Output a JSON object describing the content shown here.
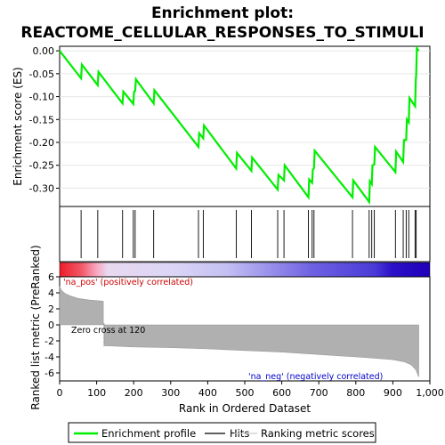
{
  "title_line1": "Enrichment plot:",
  "title_line2": "REACTOME_CELLULAR_RESPONSES_TO_STIMULI",
  "colors": {
    "profile": "#00ee00",
    "hits": "#000000",
    "metric": "#aaaaaa",
    "pos_label": "#cc0000",
    "neg_label": "#0000cc"
  },
  "chart_data": {
    "type": "line",
    "xlim": [
      0,
      1000
    ],
    "x_ticks": [
      "0",
      "100",
      "200",
      "300",
      "400",
      "500",
      "600",
      "700",
      "800",
      "900",
      "1,000"
    ],
    "xlabel": "Rank in Ordered Dataset",
    "es_panel": {
      "ylabel": "Enrichment score (ES)",
      "ylim": [
        -0.34,
        0.01
      ],
      "y_ticks": [
        "0.00",
        "-0.05",
        "-0.10",
        "-0.15",
        "-0.20",
        "-0.25",
        "-0.30"
      ],
      "series": [
        {
          "name": "Enrichment profile",
          "points": [
            [
              0,
              0.0
            ],
            [
              58,
              -0.06
            ],
            [
              60,
              -0.03
            ],
            [
              103,
              -0.075
            ],
            [
              105,
              -0.046
            ],
            [
              170,
              -0.115
            ],
            [
              172,
              -0.089
            ],
            [
              199,
              -0.116
            ],
            [
              201,
              -0.09
            ],
            [
              204,
              -0.087
            ],
            [
              206,
              -0.062
            ],
            [
              254,
              -0.115
            ],
            [
              256,
              -0.086
            ],
            [
              375,
              -0.21
            ],
            [
              377,
              -0.18
            ],
            [
              388,
              -0.191
            ],
            [
              390,
              -0.163
            ],
            [
              477,
              -0.257
            ],
            [
              479,
              -0.223
            ],
            [
              518,
              -0.262
            ],
            [
              520,
              -0.233
            ],
            [
              589,
              -0.303
            ],
            [
              591,
              -0.271
            ],
            [
              606,
              -0.283
            ],
            [
              608,
              -0.25
            ],
            [
              672,
              -0.32
            ],
            [
              674,
              -0.281
            ],
            [
              682,
              -0.288
            ],
            [
              684,
              -0.26
            ],
            [
              687,
              -0.256
            ],
            [
              689,
              -0.218
            ],
            [
              791,
              -0.32
            ],
            [
              793,
              -0.283
            ],
            [
              836,
              -0.33
            ],
            [
              838,
              -0.285
            ],
            [
              843,
              -0.291
            ],
            [
              845,
              -0.25
            ],
            [
              850,
              -0.248
            ],
            [
              852,
              -0.21
            ],
            [
              907,
              -0.265
            ],
            [
              909,
              -0.22
            ],
            [
              928,
              -0.243
            ],
            [
              930,
              -0.195
            ],
            [
              936,
              -0.195
            ],
            [
              938,
              -0.15
            ],
            [
              943,
              -0.156
            ],
            [
              945,
              -0.103
            ],
            [
              960,
              -0.121
            ],
            [
              962,
              -0.062
            ],
            [
              963,
              -0.055
            ],
            [
              965,
              0.006
            ],
            [
              970,
              0.0
            ]
          ]
        }
      ]
    },
    "hits": [
      58,
      103,
      170,
      199,
      204,
      254,
      375,
      388,
      477,
      518,
      589,
      606,
      672,
      682,
      687,
      791,
      836,
      843,
      850,
      907,
      928,
      936,
      943,
      960,
      963
    ],
    "metric_panel": {
      "ylabel": "Ranked list metric (PreRanked)",
      "ylim": [
        -7,
        6
      ],
      "y_ticks": [
        "6",
        "4",
        "2",
        "0",
        "-2",
        "-4",
        "-6"
      ],
      "zero_cross_label": "Zero cross at 120",
      "zero_cross": 120,
      "pos_label": "'na_pos' (positively correlated)",
      "neg_label": "'na_neg' (negatively correlated)",
      "curve": [
        [
          0,
          4.8
        ],
        [
          5,
          4.3
        ],
        [
          15,
          3.9
        ],
        [
          30,
          3.6
        ],
        [
          50,
          3.3
        ],
        [
          80,
          3.1
        ],
        [
          118,
          2.95
        ],
        [
          120,
          -2.6
        ],
        [
          200,
          -2.75
        ],
        [
          300,
          -2.85
        ],
        [
          400,
          -3.0
        ],
        [
          500,
          -3.2
        ],
        [
          600,
          -3.4
        ],
        [
          700,
          -3.7
        ],
        [
          800,
          -4.0
        ],
        [
          850,
          -4.15
        ],
        [
          900,
          -4.35
        ],
        [
          930,
          -4.6
        ],
        [
          950,
          -5.0
        ],
        [
          962,
          -5.6
        ],
        [
          970,
          -6.5
        ]
      ]
    },
    "legend": [
      "Enrichment profile",
      "Hits",
      "Ranking metric scores"
    ]
  }
}
